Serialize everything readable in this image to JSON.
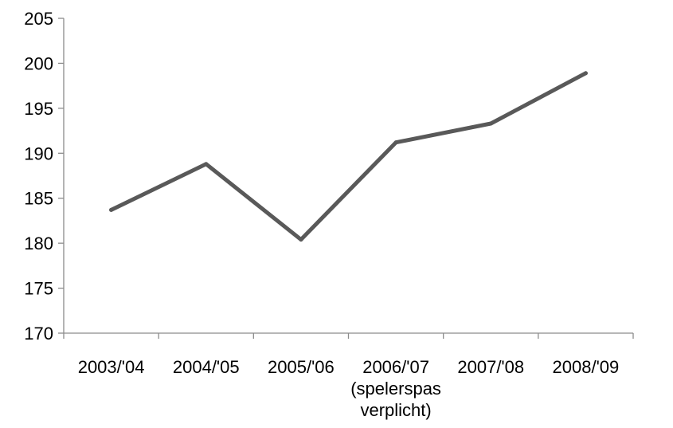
{
  "chart_data": {
    "type": "line",
    "title": "",
    "xlabel": "",
    "ylabel": "",
    "categories": [
      [
        "2003/'04"
      ],
      [
        "2004/'05"
      ],
      [
        "2005/'06"
      ],
      [
        "2006/'07",
        "(spelerspas",
        "verplicht)"
      ],
      [
        "2007/'08"
      ],
      [
        "2008/'09"
      ]
    ],
    "series": [
      {
        "values": [
          183.7,
          188.8,
          180.4,
          191.2,
          193.3,
          198.9
        ],
        "color": "#595959"
      }
    ],
    "ylim": [
      170,
      205
    ],
    "yticks": [
      170,
      175,
      180,
      185,
      190,
      195,
      200,
      205
    ],
    "grid": false,
    "legend": "none"
  }
}
